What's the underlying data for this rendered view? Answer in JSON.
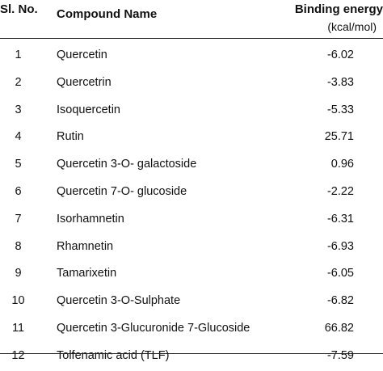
{
  "table": {
    "headers": {
      "sl_no": "Sl. No.",
      "compound_name": "Compound Name",
      "binding_energy": "Binding energy",
      "binding_energy_unit": "(kcal/mol)"
    },
    "rows": [
      {
        "sl_no": "1",
        "compound_name": "Quercetin",
        "binding_energy": "-6.02"
      },
      {
        "sl_no": "2",
        "compound_name": "Quercetrin",
        "binding_energy": "-3.83"
      },
      {
        "sl_no": "3",
        "compound_name": "Isoquercetin",
        "binding_energy": "-5.33"
      },
      {
        "sl_no": "4",
        "compound_name": "Rutin",
        "binding_energy": "25.71"
      },
      {
        "sl_no": "5",
        "compound_name": "Quercetin 3-O- galactoside",
        "binding_energy": "0.96"
      },
      {
        "sl_no": "6",
        "compound_name": "Quercetin 7-O- glucoside",
        "binding_energy": "-2.22"
      },
      {
        "sl_no": "7",
        "compound_name": "Isorhamnetin",
        "binding_energy": "-6.31"
      },
      {
        "sl_no": "8",
        "compound_name": "Rhamnetin",
        "binding_energy": "-6.93"
      },
      {
        "sl_no": "9",
        "compound_name": "Tamarixetin",
        "binding_energy": "-6.05"
      },
      {
        "sl_no": "10",
        "compound_name": "Quercetin 3-O-Sulphate",
        "binding_energy": "-6.82"
      },
      {
        "sl_no": "11",
        "compound_name": "Quercetin 3-Glucuronide 7-Glucoside",
        "binding_energy": "66.82"
      },
      {
        "sl_no": "12",
        "compound_name": "Tolfenamic acid (TLF)",
        "binding_energy": "-7.59"
      }
    ]
  }
}
